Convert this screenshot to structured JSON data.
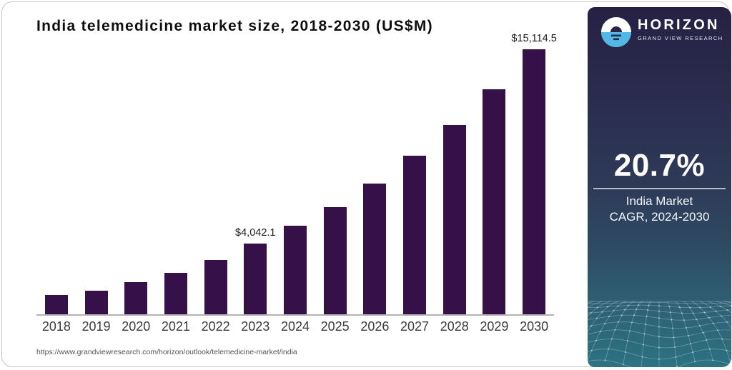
{
  "chart_data": {
    "type": "bar",
    "title": "India telemedicine market size, 2018-2030 (US$M)",
    "categories": [
      "2018",
      "2019",
      "2020",
      "2021",
      "2022",
      "2023",
      "2024",
      "2025",
      "2026",
      "2027",
      "2028",
      "2029",
      "2030"
    ],
    "values": [
      1100,
      1350,
      1830,
      2360,
      3090,
      4042.1,
      5050,
      6100,
      7450,
      9050,
      10800,
      12850,
      15114.5
    ],
    "point_labels": [
      "",
      "",
      "",
      "",
      "",
      "$4,042.1",
      "",
      "",
      "",
      "",
      "",
      "",
      "$15,114.5"
    ],
    "ylim": [
      0,
      15114.5
    ],
    "bar_color": "#361149",
    "xlabel": "",
    "ylabel": "",
    "legend": null,
    "grid": false
  },
  "source_url": "https://www.grandviewresearch.com/horizon/outlook/telemedicine-market/india",
  "sidebar": {
    "brand_name": "HORIZON",
    "brand_tagline": "GRAND VIEW RESEARCH",
    "stat_value": "20.7%",
    "stat_caption_line1": "India Market",
    "stat_caption_line2": "CAGR, 2024-2030",
    "colors": {
      "gradient_top": "#262144",
      "gradient_bottom": "#2c7383",
      "logo_blue": "#54b8e6"
    }
  }
}
